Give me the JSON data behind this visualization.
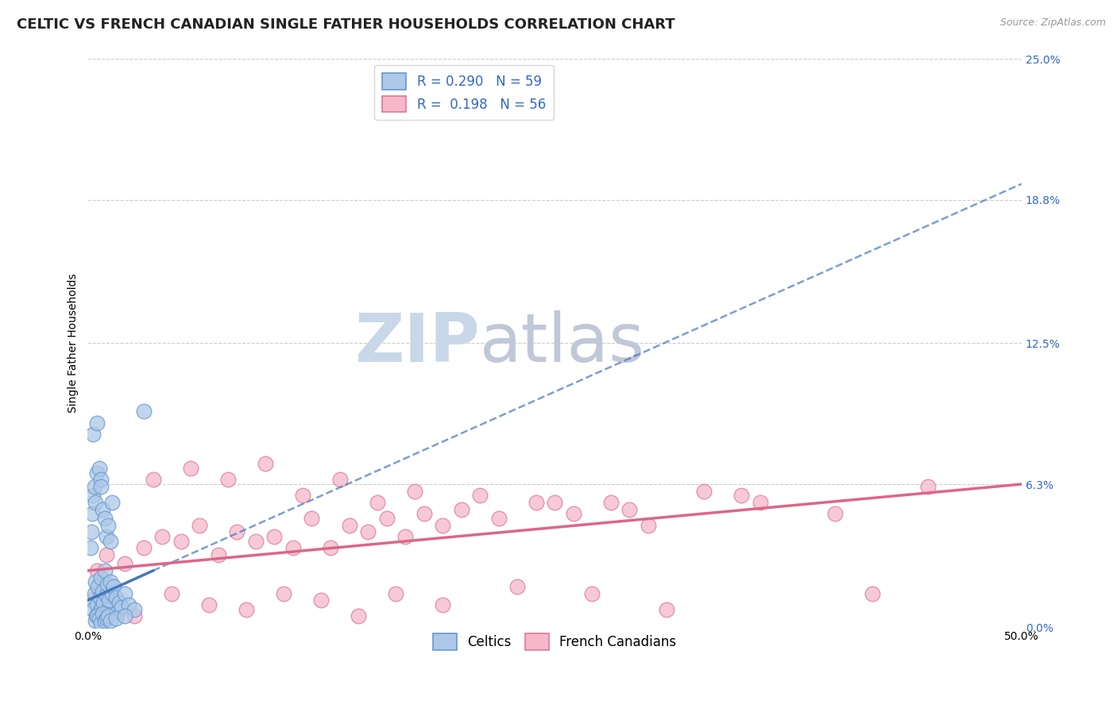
{
  "title": "CELTIC VS FRENCH CANADIAN SINGLE FATHER HOUSEHOLDS CORRELATION CHART",
  "source": "Source: ZipAtlas.com",
  "ylabel": "Single Father Households",
  "xlim": [
    0.0,
    50.0
  ],
  "ylim": [
    0.0,
    25.0
  ],
  "yticks": [
    0.0,
    6.3,
    12.5,
    18.8,
    25.0
  ],
  "ytick_labels": [
    "0.0%",
    "6.3%",
    "12.5%",
    "18.8%",
    "25.0%"
  ],
  "xtick_labels": [
    "0.0%",
    "50.0%"
  ],
  "xtick_pos": [
    0.0,
    50.0
  ],
  "celtics_R": 0.29,
  "celtics_N": 59,
  "french_R": 0.198,
  "french_N": 56,
  "celtics_color": "#adc8e8",
  "celtics_edge_color": "#6699cc",
  "french_color": "#f5b8ca",
  "french_edge_color": "#e07898",
  "celtics_line_color": "#4477bb",
  "french_line_color": "#dd6688",
  "tick_color": "#3366cc",
  "background_color": "#ffffff",
  "grid_color": "#cccccc",
  "watermark_color": "#dce6f0",
  "title_fontsize": 13,
  "axis_label_fontsize": 10,
  "tick_fontsize": 10,
  "legend_fontsize": 12,
  "celtics_x": [
    0.2,
    0.3,
    0.35,
    0.4,
    0.45,
    0.5,
    0.55,
    0.6,
    0.65,
    0.7,
    0.75,
    0.8,
    0.85,
    0.9,
    0.95,
    1.0,
    1.05,
    1.1,
    1.15,
    1.2,
    1.3,
    1.4,
    1.5,
    1.6,
    1.7,
    1.8,
    2.0,
    2.2,
    2.5,
    0.15,
    0.2,
    0.25,
    0.3,
    0.35,
    0.4,
    0.5,
    0.6,
    0.7,
    0.8,
    0.9,
    1.0,
    1.1,
    1.2,
    1.3,
    0.4,
    0.5,
    0.6,
    0.7,
    0.8,
    0.9,
    1.0,
    1.1,
    1.2,
    1.5,
    2.0,
    0.3,
    0.5,
    0.7,
    3.0
  ],
  "celtics_y": [
    1.2,
    0.8,
    1.5,
    2.0,
    0.5,
    1.0,
    1.8,
    0.7,
    1.3,
    2.2,
    0.9,
    1.6,
    1.1,
    2.5,
    0.6,
    1.4,
    1.9,
    0.8,
    1.2,
    2.0,
    1.5,
    1.8,
    1.3,
    0.7,
    1.1,
    0.9,
    1.5,
    1.0,
    0.8,
    3.5,
    4.2,
    5.0,
    5.8,
    6.2,
    5.5,
    6.8,
    7.0,
    6.5,
    5.2,
    4.8,
    4.0,
    4.5,
    3.8,
    5.5,
    0.3,
    0.5,
    0.4,
    0.2,
    0.6,
    0.3,
    0.4,
    0.5,
    0.3,
    0.4,
    0.5,
    8.5,
    9.0,
    6.2,
    9.5
  ],
  "french_x": [
    0.5,
    1.0,
    2.0,
    3.0,
    4.0,
    5.0,
    6.0,
    7.0,
    8.0,
    9.0,
    10.0,
    11.0,
    12.0,
    13.0,
    14.0,
    15.0,
    16.0,
    17.0,
    18.0,
    19.0,
    20.0,
    22.0,
    24.0,
    26.0,
    28.0,
    30.0,
    33.0,
    36.0,
    40.0,
    45.0,
    3.5,
    5.5,
    7.5,
    9.5,
    11.5,
    13.5,
    15.5,
    17.5,
    21.0,
    25.0,
    29.0,
    35.0,
    42.0,
    1.5,
    2.5,
    4.5,
    6.5,
    8.5,
    10.5,
    12.5,
    16.5,
    23.0,
    14.5,
    19.0,
    27.0,
    31.0
  ],
  "french_y": [
    2.5,
    3.2,
    2.8,
    3.5,
    4.0,
    3.8,
    4.5,
    3.2,
    4.2,
    3.8,
    4.0,
    3.5,
    4.8,
    3.5,
    4.5,
    4.2,
    4.8,
    4.0,
    5.0,
    4.5,
    5.2,
    4.8,
    5.5,
    5.0,
    5.5,
    4.5,
    6.0,
    5.5,
    5.0,
    6.2,
    6.5,
    7.0,
    6.5,
    7.2,
    5.8,
    6.5,
    5.5,
    6.0,
    5.8,
    5.5,
    5.2,
    5.8,
    1.5,
    1.2,
    0.5,
    1.5,
    1.0,
    0.8,
    1.5,
    1.2,
    1.5,
    1.8,
    0.5,
    1.0,
    1.5,
    0.8
  ],
  "celtics_trend_x0": 0.0,
  "celtics_trend_y0": 1.2,
  "celtics_trend_x1": 50.0,
  "celtics_trend_y1": 19.5,
  "celtics_solid_x0": 0.0,
  "celtics_solid_y0": 1.2,
  "celtics_solid_x1": 3.5,
  "celtics_solid_y1": 2.5,
  "french_trend_x0": 0.0,
  "french_trend_y0": 2.5,
  "french_trend_x1": 50.0,
  "french_trend_y1": 6.3
}
